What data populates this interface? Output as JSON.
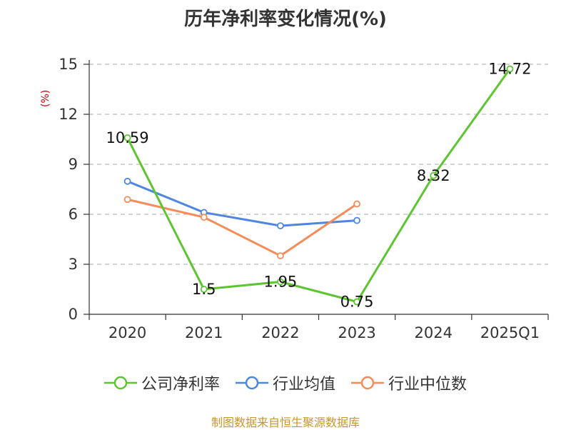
{
  "chart_data": {
    "type": "line",
    "title": "历年净利率变化情况(%)",
    "ylabel": "(%)",
    "xlabel": "",
    "categories": [
      "2020",
      "2021",
      "2022",
      "2023",
      "2024",
      "2025Q1"
    ],
    "ylim": [
      0,
      15
    ],
    "yticks": [
      0,
      3,
      6,
      9,
      12,
      15
    ],
    "grid": true,
    "legend_position": "bottom",
    "series": [
      {
        "name": "公司净利率",
        "color": "#5dc531",
        "values": [
          10.59,
          1.5,
          1.95,
          0.75,
          8.32,
          14.72
        ],
        "labels": [
          "10.59",
          "1.5",
          "1.95",
          "0.75",
          "8.32",
          "14.72"
        ]
      },
      {
        "name": "行业均值",
        "color": "#4f86e0",
        "values": [
          7.98,
          6.11,
          5.31,
          5.63,
          null,
          null
        ]
      },
      {
        "name": "行业中位数",
        "color": "#f58c5a",
        "values": [
          6.89,
          5.82,
          3.51,
          6.62,
          null,
          null
        ]
      }
    ]
  },
  "source": "制图数据来自恒生聚源数据库"
}
